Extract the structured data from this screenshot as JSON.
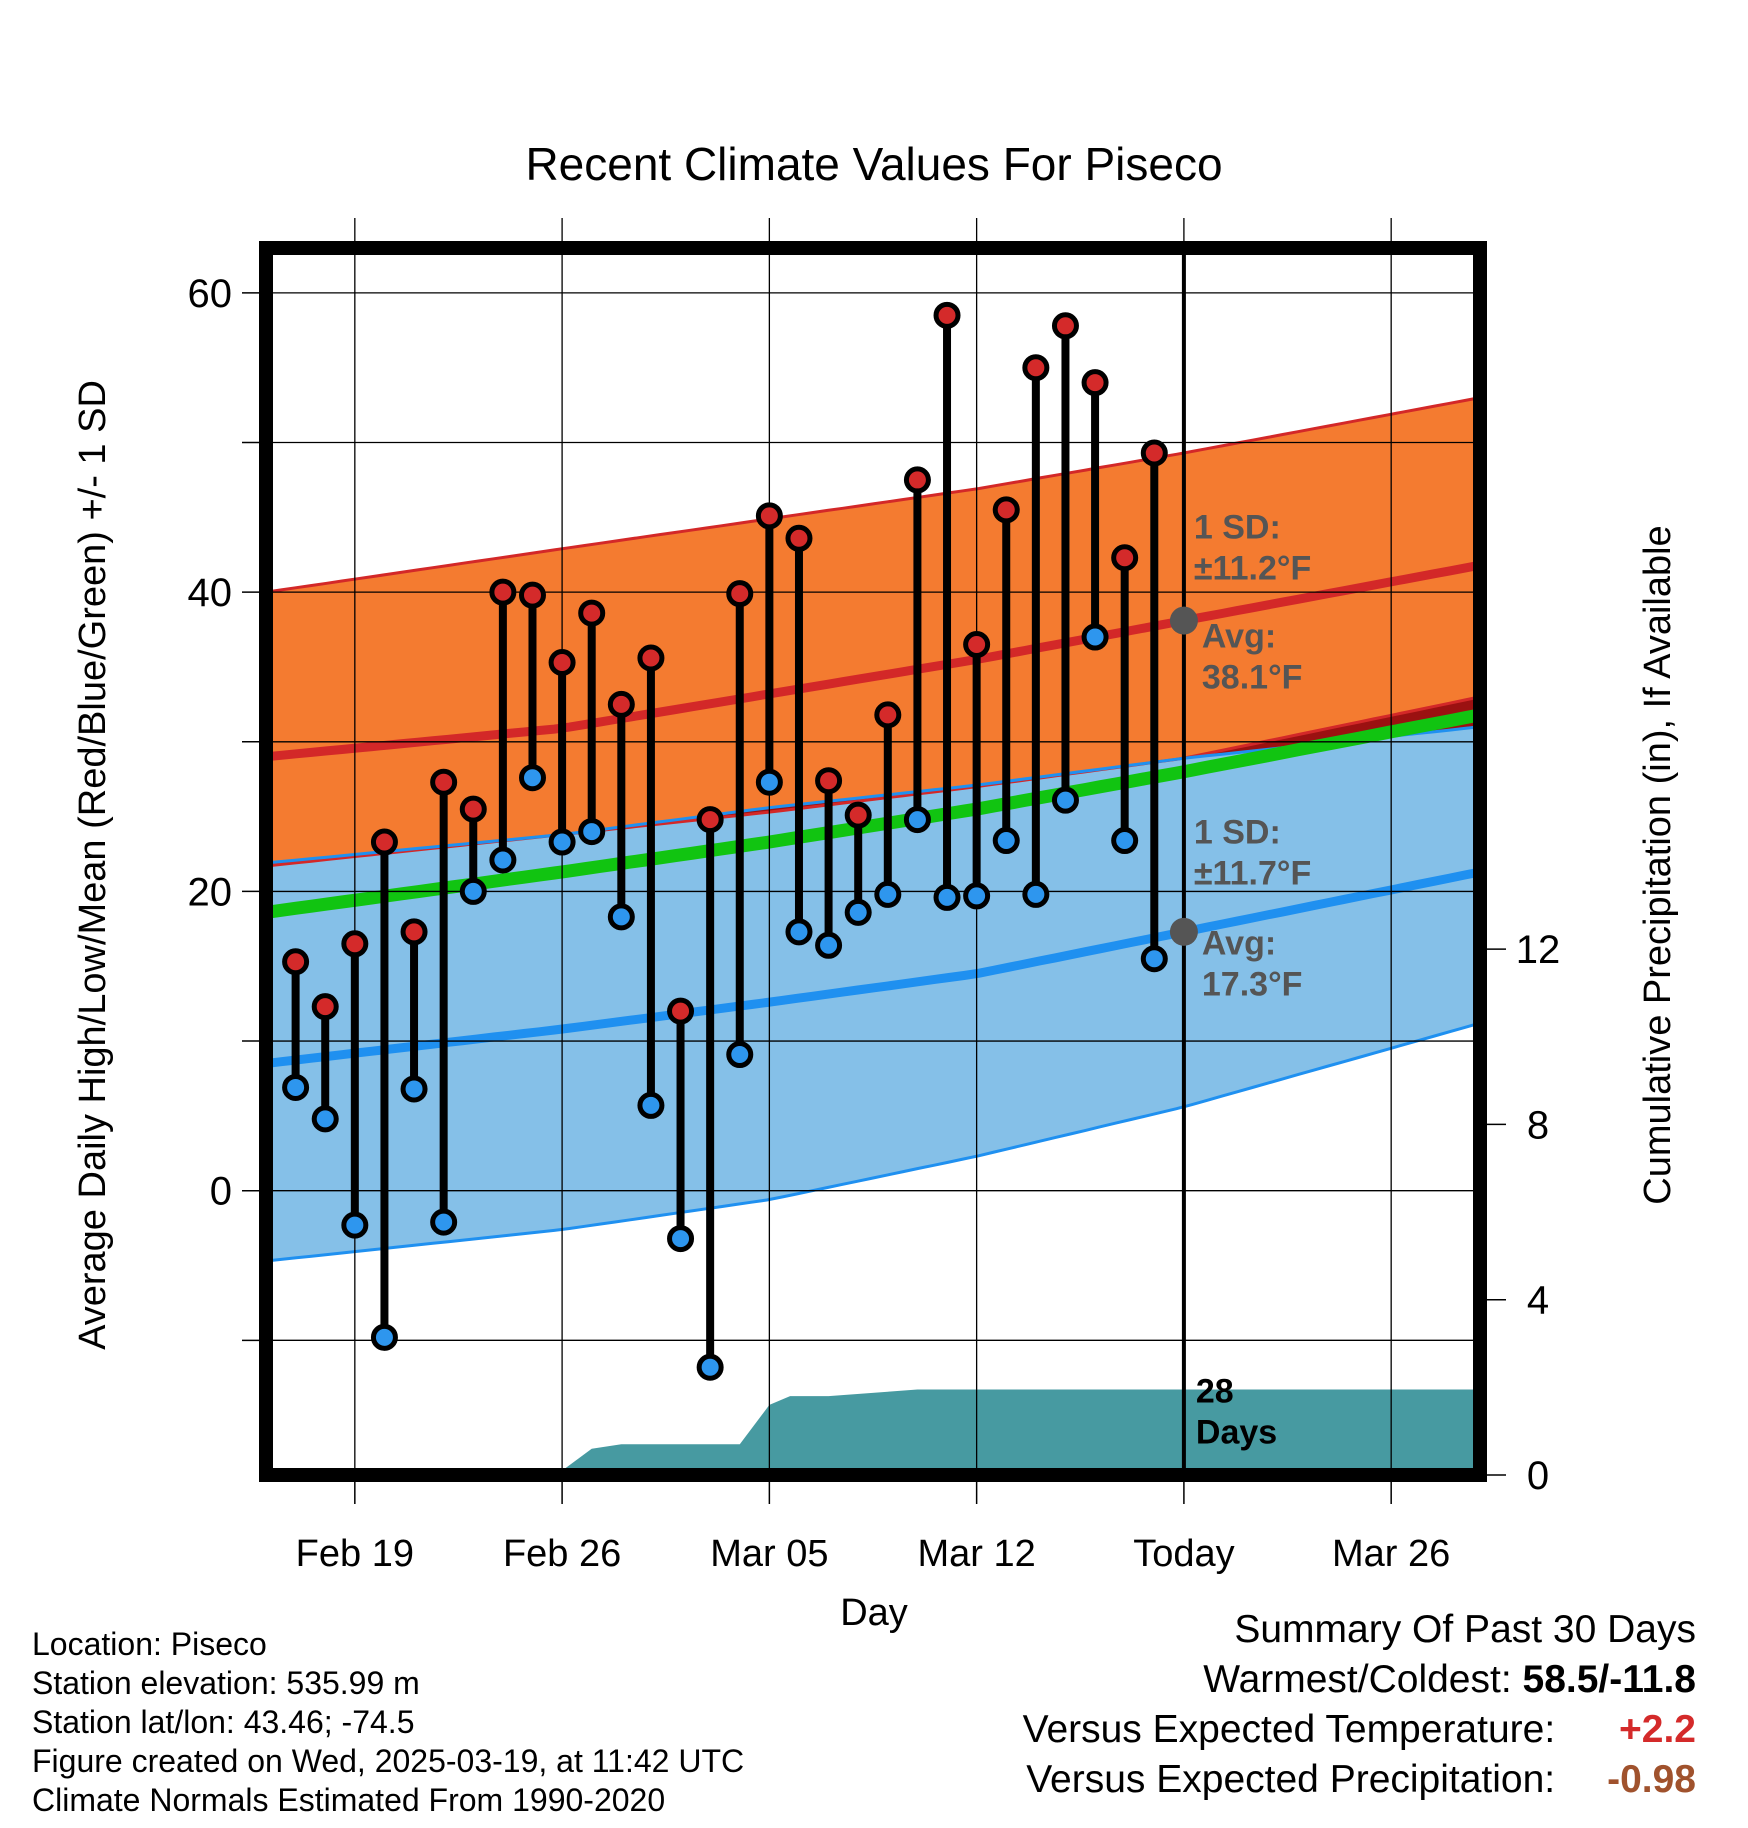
{
  "chart_data": {
    "type": "line",
    "title": "Recent Climate Values For Piseco",
    "xlabel": "Day",
    "ylabel": "Average Daily High/Low/Mean (Red/Blue/Green) +/- 1 SD",
    "y2label": "Cumulative Precipitation (in), If Available",
    "x_range_days": [
      -31,
      10
    ],
    "x_ticks": [
      {
        "day": -28,
        "label": "Feb 19"
      },
      {
        "day": -21,
        "label": "Feb 26"
      },
      {
        "day": -14,
        "label": "Mar 05"
      },
      {
        "day": -7,
        "label": "Mar 12"
      },
      {
        "day": 0,
        "label": "Today"
      },
      {
        "day": 7,
        "label": "Mar 26"
      }
    ],
    "ylim": [
      -19,
      63
    ],
    "y_ticks": [
      0,
      20,
      40,
      60
    ],
    "y2lim": [
      0,
      28
    ],
    "y2_ticks": [
      0,
      4,
      8,
      12
    ],
    "grid": true,
    "daily_high": [
      15.3,
      12.3,
      16.5,
      23.3,
      17.3,
      27.3,
      25.5,
      40,
      39.8,
      35.3,
      38.6,
      32.5,
      35.6,
      12,
      24.8,
      39.9,
      45.1,
      43.6,
      27.4,
      25.1,
      31.8,
      47.5,
      58.5,
      36.5,
      45.5,
      55,
      57.8,
      54,
      42.3,
      49.3
    ],
    "daily_low": [
      6.9,
      4.8,
      -2.3,
      -9.8,
      6.8,
      -2.1,
      20,
      22.1,
      27.6,
      23.3,
      24,
      18.3,
      5.7,
      -3.2,
      -11.8,
      9.1,
      27.3,
      17.3,
      16.4,
      18.6,
      19.8,
      24.8,
      19.6,
      19.7,
      23.4,
      19.8,
      26.1,
      37,
      23.4,
      15.5
    ],
    "normal_high": {
      "days": [
        -31,
        -21,
        -14,
        -7,
        0,
        10
      ],
      "mean": [
        29,
        30.9,
        33.2,
        35.5,
        38.1,
        41.8
      ],
      "upper": [
        40,
        42.9,
        44.9,
        46.9,
        49.3,
        53
      ],
      "lower": [
        21.7,
        23.8,
        25.3,
        27,
        28.9,
        33
      ]
    },
    "normal_low": {
      "days": [
        -31,
        -21,
        -14,
        -7,
        0,
        10
      ],
      "mean": [
        8.5,
        10.8,
        12.6,
        14.5,
        17.3,
        21.3
      ],
      "upper": [
        21.9,
        23.8,
        25.6,
        27.1,
        28.9,
        31
      ],
      "lower": [
        -4.7,
        -2.6,
        -0.6,
        2.3,
        5.6,
        11.2
      ]
    },
    "normal_mean": {
      "days": [
        -31,
        -21,
        -14,
        -7,
        0,
        10
      ],
      "values": [
        18.6,
        21.3,
        23.3,
        25.5,
        28,
        31.8
      ]
    },
    "precip": {
      "days": [
        -31,
        -24,
        -22.7,
        -21,
        -20,
        -19,
        -17,
        -16,
        -15,
        -14,
        -13.3,
        -12,
        -10,
        -9,
        -7,
        -6,
        -3,
        0,
        10
      ],
      "values": [
        0,
        0,
        0.1,
        0.1,
        0.6,
        0.7,
        0.7,
        0.7,
        0.7,
        1.6,
        1.8,
        1.8,
        1.9,
        1.95,
        1.95,
        1.95,
        1.95,
        1.95,
        1.95
      ]
    },
    "annotations": {
      "high_sd": [
        "1 SD:",
        "±11.2°F"
      ],
      "high_avg": [
        "Avg:",
        "38.1°F"
      ],
      "low_sd": [
        "1 SD:",
        "±11.7°F"
      ],
      "low_avg": [
        "Avg:",
        "17.3°F"
      ],
      "days_label": [
        "28",
        "Days"
      ]
    },
    "colors": {
      "high_band": "#f47b30",
      "high_line": "#d32828",
      "overlap_band": "#9b1111",
      "mean_line": "#11c411",
      "low_band": "#85c0e8",
      "low_line": "#1f90f0",
      "precip": "#479aa1",
      "high_dot": "#d42a2a",
      "low_dot": "#2e96ee",
      "today_dot": "#555555",
      "annotation_text": "#555555"
    }
  },
  "info": {
    "location": "Location: Piseco",
    "elevation": "Station elevation: 535.99 m",
    "latlon": "Station lat/lon: 43.46; -74.5",
    "created": "Figure created on Wed, 2025-03-19, at 11:42 UTC",
    "normals": "Climate Normals Estimated From 1990-2020"
  },
  "summary": {
    "title": "Summary Of Past 30 Days",
    "warm_cold_label": "Warmest/Coldest:",
    "warm_cold_value": "58.5/-11.8",
    "temp_label": "Versus Expected Temperature:",
    "temp_value": "+2.2",
    "temp_color": "#d42a2a",
    "precip_label": "Versus Expected Precipitation:",
    "precip_value": "-0.98",
    "precip_color": "#a0522d"
  }
}
